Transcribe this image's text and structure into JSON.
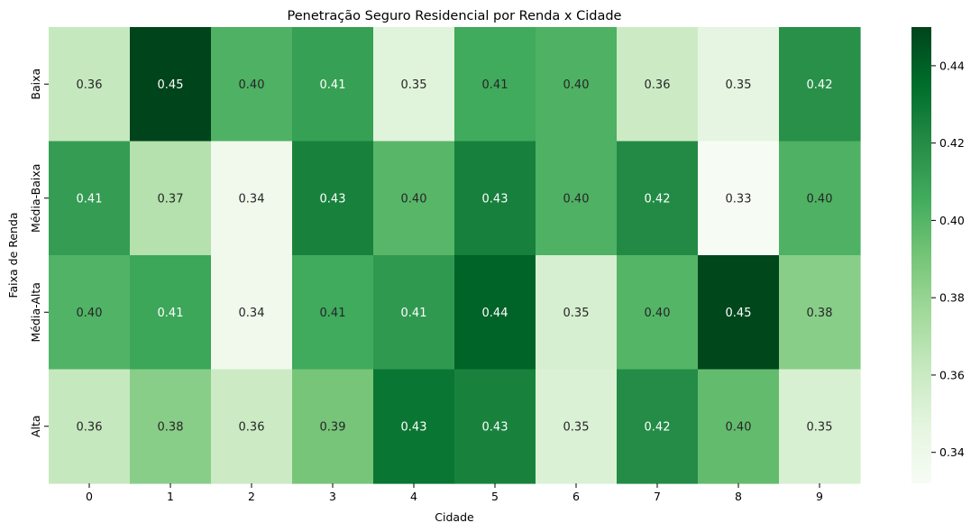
{
  "chart_data": {
    "type": "heatmap",
    "title": "Penetração Seguro Residencial por Renda x Cidade",
    "xlabel": "Cidade",
    "ylabel": "Faixa de Renda",
    "x": [
      "0",
      "1",
      "2",
      "3",
      "4",
      "5",
      "6",
      "7",
      "8",
      "9"
    ],
    "y": [
      "Baixa",
      "Média-Baixa",
      "Média-Alta",
      "Alta"
    ],
    "values": [
      [
        0.362,
        0.45,
        0.402,
        0.411,
        0.349,
        0.406,
        0.402,
        0.359,
        0.346,
        0.418
      ],
      [
        0.412,
        0.369,
        0.338,
        0.425,
        0.399,
        0.426,
        0.402,
        0.421,
        0.333,
        0.402
      ],
      [
        0.401,
        0.408,
        0.338,
        0.406,
        0.414,
        0.439,
        0.354,
        0.4,
        0.449,
        0.384
      ],
      [
        0.362,
        0.384,
        0.359,
        0.39,
        0.431,
        0.425,
        0.352,
        0.42,
        0.396,
        0.353
      ]
    ],
    "labels": [
      [
        "0.36",
        "0.45",
        "0.40",
        "0.41",
        "0.35",
        "0.41",
        "0.40",
        "0.36",
        "0.35",
        "0.42"
      ],
      [
        "0.41",
        "0.37",
        "0.34",
        "0.43",
        "0.40",
        "0.43",
        "0.40",
        "0.42",
        "0.33",
        "0.40"
      ],
      [
        "0.40",
        "0.41",
        "0.34",
        "0.41",
        "0.41",
        "0.44",
        "0.35",
        "0.40",
        "0.45",
        "0.38"
      ],
      [
        "0.36",
        "0.38",
        "0.36",
        "0.39",
        "0.43",
        "0.43",
        "0.35",
        "0.42",
        "0.40",
        "0.35"
      ]
    ],
    "colormap": "Greens",
    "vmin": 0.332,
    "vmax": 0.45,
    "colorbar_ticks": [
      0.34,
      0.36,
      0.38,
      0.4,
      0.42,
      0.44
    ],
    "colorbar_tick_labels": [
      "0.34",
      "0.36",
      "0.38",
      "0.40",
      "0.42",
      "0.44"
    ],
    "grid": false,
    "colorbar_position": "right"
  }
}
